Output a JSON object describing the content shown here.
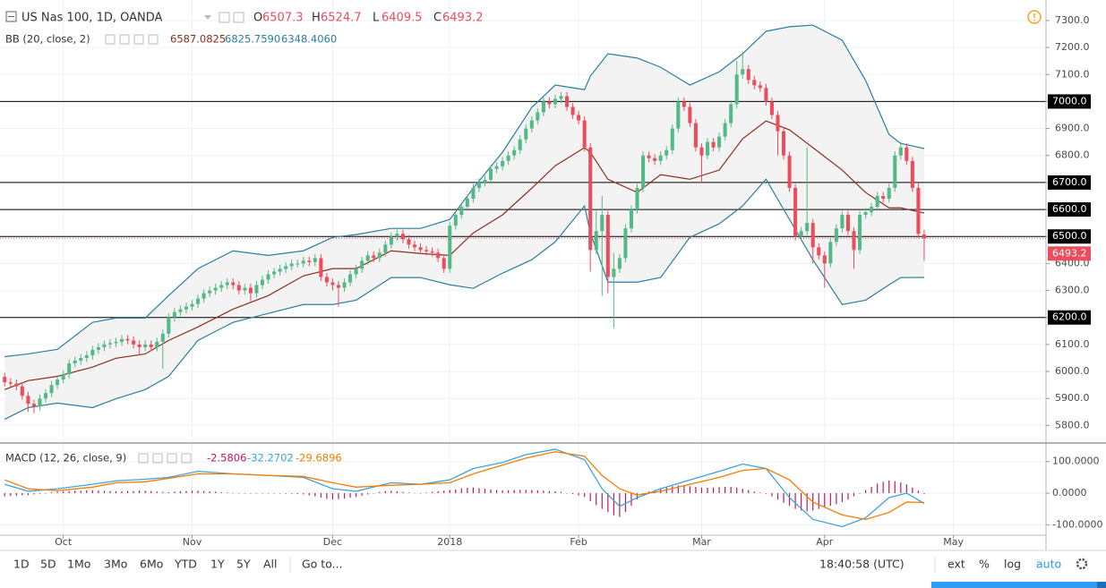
{
  "header": {
    "symbol": "US Nas 100, 1D, OANDA",
    "ohlc_letters": [
      "O",
      "H",
      "L",
      "C"
    ]
  },
  "chart_data": [
    {
      "type": "candlestick",
      "open": [
        5980,
        5960,
        5955,
        5945,
        5910,
        5880,
        5870,
        5900,
        5920,
        5950,
        5970,
        5990,
        6030,
        6040,
        6050,
        6060,
        6080,
        6090,
        6100,
        6105,
        6110,
        6120,
        6115,
        6100,
        6090,
        6100,
        6090,
        6110,
        6140,
        6200,
        6220,
        6230,
        6240,
        6250,
        6270,
        6290,
        6300,
        6310,
        6320,
        6330,
        6320,
        6300,
        6310,
        6290,
        6320,
        6340,
        6360,
        6370,
        6380,
        6390,
        6400,
        6400,
        6410,
        6405,
        6420,
        6350,
        6330,
        6320,
        6310,
        6330,
        6360,
        6380,
        6410,
        6430,
        6420,
        6440,
        6470,
        6500,
        6510,
        6490,
        6470,
        6460,
        6450,
        6445,
        6440,
        6420,
        6380,
        6540,
        6580,
        6610,
        6640,
        6680,
        6700,
        6710,
        6750,
        6760,
        6780,
        6800,
        6820,
        6860,
        6900,
        6930,
        6960,
        7000,
        6990,
        7010,
        7020,
        6980,
        6950,
        6930,
        6830,
        6450,
        6520,
        6580,
        6350,
        6380,
        6420,
        6530,
        6600,
        6680,
        6800,
        6790,
        6780,
        6800,
        6820,
        6900,
        7000,
        6980,
        6920,
        6830,
        6800,
        6850,
        6830,
        6870,
        6920,
        6990,
        7100,
        7120,
        7080,
        7060,
        7050,
        7000,
        6950,
        6890,
        6800,
        6680,
        6500,
        6520,
        6550,
        6460,
        6430,
        6400,
        6480,
        6530,
        6580,
        6520,
        6450,
        6580,
        6590,
        6610,
        6650,
        6640,
        6680,
        6800,
        6830,
        6780,
        6680,
        6507.3
      ],
      "high": [
        5995,
        5975,
        5970,
        5960,
        5925,
        5895,
        5915,
        5935,
        5965,
        5985,
        6005,
        6045,
        6055,
        6065,
        6075,
        6095,
        6105,
        6115,
        6120,
        6125,
        6135,
        6135,
        6130,
        6115,
        6115,
        6115,
        6125,
        6155,
        6215,
        6235,
        6245,
        6255,
        6265,
        6285,
        6305,
        6315,
        6325,
        6335,
        6345,
        6345,
        6335,
        6325,
        6325,
        6335,
        6355,
        6375,
        6385,
        6395,
        6405,
        6415,
        6415,
        6425,
        6425,
        6435,
        6435,
        6365,
        6345,
        6335,
        6345,
        6375,
        6395,
        6425,
        6445,
        6445,
        6455,
        6485,
        6515,
        6525,
        6525,
        6505,
        6485,
        6475,
        6465,
        6460,
        6455,
        6435,
        6555,
        6595,
        6625,
        6655,
        6695,
        6715,
        6725,
        6765,
        6775,
        6795,
        6815,
        6835,
        6875,
        6915,
        6945,
        6975,
        7015,
        7015,
        7025,
        7035,
        7035,
        6995,
        6965,
        6945,
        6845,
        6600,
        6650,
        6595,
        6440,
        6435,
        6545,
        6615,
        6695,
        6815,
        6815,
        6805,
        6815,
        6835,
        6915,
        7015,
        7015,
        6995,
        6935,
        6845,
        6865,
        6865,
        6885,
        6935,
        7005,
        7150,
        7185,
        7135,
        7095,
        7075,
        7065,
        7015,
        6965,
        6905,
        6815,
        6695,
        6535,
        6830,
        6565,
        6475,
        6445,
        6495,
        6545,
        6595,
        6595,
        6535,
        6595,
        6605,
        6625,
        6665,
        6665,
        6695,
        6815,
        6850,
        6845,
        6795,
        6700,
        6524.7
      ],
      "low": [
        5945,
        5940,
        5930,
        5895,
        5850,
        5845,
        5855,
        5885,
        5905,
        5935,
        5955,
        5975,
        6015,
        6025,
        6035,
        6045,
        6065,
        6075,
        6085,
        6090,
        6095,
        6100,
        6085,
        6060,
        6075,
        6075,
        6075,
        6010,
        6125,
        6185,
        6205,
        6215,
        6225,
        6235,
        6255,
        6275,
        6285,
        6295,
        6305,
        6305,
        6285,
        6285,
        6260,
        6275,
        6305,
        6325,
        6345,
        6355,
        6365,
        6375,
        6385,
        6385,
        6390,
        6390,
        6335,
        6315,
        6300,
        6240,
        6295,
        6315,
        6345,
        6365,
        6395,
        6405,
        6405,
        6425,
        6455,
        6485,
        6475,
        6455,
        6445,
        6435,
        6430,
        6425,
        6405,
        6365,
        6365,
        6525,
        6565,
        6595,
        6625,
        6665,
        6685,
        6695,
        6735,
        6745,
        6765,
        6785,
        6805,
        6845,
        6885,
        6915,
        6945,
        6975,
        6975,
        6995,
        6965,
        6935,
        6915,
        6815,
        6370,
        6435,
        6280,
        6290,
        6160,
        6365,
        6405,
        6515,
        6585,
        6665,
        6775,
        6765,
        6765,
        6785,
        6805,
        6885,
        6965,
        6905,
        6815,
        6700,
        6785,
        6815,
        6815,
        6855,
        6905,
        6975,
        7085,
        7065,
        7045,
        7035,
        6985,
        6935,
        6800,
        6785,
        6665,
        6485,
        6485,
        6505,
        6400,
        6415,
        6310,
        6385,
        6465,
        6515,
        6505,
        6380,
        6435,
        6565,
        6575,
        6595,
        6625,
        6625,
        6665,
        6785,
        6765,
        6665,
        6495,
        6409.5
      ],
      "close": [
        5960,
        5955,
        5945,
        5910,
        5880,
        5870,
        5900,
        5920,
        5950,
        5970,
        5990,
        6030,
        6040,
        6050,
        6060,
        6080,
        6090,
        6100,
        6105,
        6110,
        6120,
        6115,
        6100,
        6090,
        6100,
        6090,
        6110,
        6140,
        6200,
        6220,
        6230,
        6240,
        6250,
        6270,
        6290,
        6300,
        6310,
        6320,
        6330,
        6320,
        6300,
        6310,
        6290,
        6320,
        6340,
        6360,
        6370,
        6380,
        6390,
        6400,
        6400,
        6410,
        6405,
        6420,
        6350,
        6330,
        6320,
        6310,
        6330,
        6360,
        6380,
        6410,
        6430,
        6420,
        6440,
        6470,
        6500,
        6510,
        6490,
        6470,
        6460,
        6450,
        6445,
        6440,
        6420,
        6380,
        6540,
        6580,
        6610,
        6640,
        6680,
        6700,
        6710,
        6750,
        6760,
        6780,
        6800,
        6820,
        6860,
        6900,
        6930,
        6960,
        7000,
        6990,
        7010,
        7020,
        6980,
        6950,
        6930,
        6830,
        6450,
        6520,
        6580,
        6350,
        6380,
        6420,
        6530,
        6600,
        6680,
        6800,
        6790,
        6780,
        6800,
        6820,
        6900,
        7000,
        6980,
        6920,
        6830,
        6800,
        6850,
        6830,
        6870,
        6920,
        6990,
        7100,
        7120,
        7080,
        7060,
        7050,
        7000,
        6950,
        6890,
        6800,
        6680,
        6500,
        6520,
        6550,
        6460,
        6430,
        6400,
        6480,
        6530,
        6580,
        6520,
        6450,
        6580,
        6590,
        6610,
        6650,
        6640,
        6680,
        6800,
        6830,
        6780,
        6680,
        6510,
        6493.2
      ],
      "up_color": "#53b987",
      "down_color": "#eb4d5c",
      "xlim": [
        -0.8,
        177.8
      ],
      "xticks": [
        {
          "value": 10,
          "label": "Oct"
        },
        {
          "value": 32,
          "label": "Nov"
        },
        {
          "value": 56,
          "label": "Dec"
        },
        {
          "value": 76,
          "label": "2018"
        },
        {
          "value": 98,
          "label": "Feb"
        },
        {
          "value": 119,
          "label": "Mar"
        },
        {
          "value": 140,
          "label": "Apr"
        },
        {
          "value": 162,
          "label": "May"
        }
      ],
      "ylim": [
        5735,
        7376
      ],
      "yticks": [
        {
          "value": 7300,
          "label": "7300.0"
        },
        {
          "value": 7200,
          "label": "7200.0"
        },
        {
          "value": 7100,
          "label": "7100.0"
        },
        {
          "value": 7000,
          "label": "7000.0"
        },
        {
          "value": 6900,
          "label": "6900.0"
        },
        {
          "value": 6800,
          "label": "6800.0"
        },
        {
          "value": 6700,
          "label": "6700.0"
        },
        {
          "value": 6600,
          "label": "6600.0"
        },
        {
          "value": 6500,
          "label": "6500.0"
        },
        {
          "value": 6400,
          "label": "6400.0"
        },
        {
          "value": 6300,
          "label": "6300.0"
        },
        {
          "value": 6200,
          "label": "6200.0"
        },
        {
          "value": 6100,
          "label": "6100.0"
        },
        {
          "value": 6000,
          "label": "6000.0"
        },
        {
          "value": 5900,
          "label": "5900.0"
        },
        {
          "value": 5800,
          "label": "5800.0"
        }
      ],
      "grid": true,
      "hlines": [
        {
          "value": 7000,
          "label": "7000.0"
        },
        {
          "value": 6700,
          "label": "6700.0"
        },
        {
          "value": 6600,
          "label": "6600.0"
        },
        {
          "value": 6500,
          "label": "6500.0"
        },
        {
          "value": 6200,
          "label": "6200.0"
        }
      ],
      "bollinger": {
        "label": "BB (20, close, 2)",
        "fill": "#f3f3f3",
        "x": [
          0,
          4,
          9,
          15,
          19,
          24,
          28,
          33,
          39,
          45,
          51,
          56,
          60,
          66,
          71,
          76,
          80,
          85,
          90,
          94,
          99,
          100,
          103,
          108,
          112,
          117,
          122,
          126,
          130,
          134,
          138,
          143,
          147,
          151,
          153,
          157
        ],
        "series": [
          {
            "color": "#8b2e1e",
            "legend_label": "6587.0825",
            "values": [
              5933,
              5966,
              5982,
              6016,
              6049,
              6065,
              6115,
              6165,
              6231,
              6281,
              6354,
              6381,
              6381,
              6447,
              6437,
              6430,
              6513,
              6580,
              6679,
              6762,
              6829,
              6812,
              6712,
              6663,
              6729,
              6712,
              6746,
              6862,
              6928,
              6895,
              6829,
              6746,
              6663,
              6606,
              6606,
              6587.0825
            ]
          },
          {
            "color": "#2a7f9e",
            "legend_label": "6825.7590",
            "values": [
              6055,
              6065,
              6082,
              6182,
              6198,
              6198,
              6281,
              6381,
              6447,
              6430,
              6447,
              6497,
              6507,
              6530,
              6530,
              6563,
              6679,
              6812,
              6978,
              7061,
              7044,
              7094,
              7177,
              7161,
              7127,
              7061,
              7110,
              7177,
              7260,
              7277,
              7283,
              7227,
              7078,
              6878,
              6845,
              6825.759
            ]
          },
          {
            "color": "#2a7f9e",
            "legend_label": "6348.4060",
            "values": [
              5823,
              5866,
              5883,
              5866,
              5899,
              5933,
              5982,
              6115,
              6182,
              6215,
              6248,
              6248,
              6264,
              6348,
              6348,
              6321,
              6308,
              6364,
              6414,
              6480,
              6613,
              6513,
              6331,
              6331,
              6348,
              6497,
              6547,
              6613,
              6712,
              6563,
              6414,
              6248,
              6264,
              6321,
              6348,
              6348.406
            ]
          }
        ]
      }
    },
    {
      "type": "macd",
      "label": "MACD (12, 26, close, 9)",
      "ylim": [
        -133,
        153
      ],
      "yticks": [
        {
          "value": 100,
          "label": "100.0000"
        },
        {
          "value": 0,
          "label": "0.0000"
        },
        {
          "value": -100,
          "label": "-100.0000"
        }
      ],
      "histogram": {
        "color": "#c2185b",
        "values": [
          -10,
          -9,
          -8,
          -7,
          -6,
          -4,
          -2,
          0,
          3,
          5,
          6,
          7,
          8,
          8,
          9,
          9,
          8,
          7,
          7,
          6,
          6,
          7,
          7,
          8,
          8,
          7,
          5,
          4,
          3,
          5,
          6,
          7,
          8,
          8,
          7,
          6,
          5,
          3,
          2,
          1,
          0,
          0,
          0,
          0,
          0,
          0,
          -1,
          -1,
          -2,
          -2,
          -3,
          -4,
          -7,
          -10,
          -14,
          -18,
          -20,
          -19,
          -17,
          -14,
          -12,
          -8,
          -4,
          0,
          4,
          7,
          8,
          6,
          4,
          2,
          1,
          0,
          2,
          4,
          6,
          8,
          10,
          12,
          15,
          17,
          18,
          16,
          14,
          12,
          10,
          9,
          9,
          10,
          11,
          11,
          10,
          9,
          8,
          7,
          6,
          4,
          0,
          -3,
          -7,
          -12,
          -25,
          -38,
          -50,
          -60,
          -70,
          -75,
          -60,
          -40,
          -20,
          -5,
          5,
          10,
          15,
          18,
          22,
          25,
          24,
          22,
          20,
          18,
          17,
          18,
          19,
          20,
          20,
          18,
          14,
          10,
          5,
          2,
          -2,
          -10,
          -20,
          -30,
          -40,
          -50,
          -55,
          -58,
          -55,
          -50,
          -45,
          -40,
          -35,
          -28,
          -20,
          -10,
          0,
          10,
          20,
          30,
          36,
          40,
          38,
          34,
          28,
          18,
          8,
          -2.5806
        ]
      },
      "x": [
        0,
        4,
        9,
        15,
        19,
        24,
        28,
        33,
        39,
        45,
        51,
        56,
        60,
        66,
        71,
        76,
        80,
        85,
        89,
        94,
        99,
        102,
        105,
        108,
        112,
        117,
        122,
        126,
        130,
        134,
        138,
        143,
        147,
        151,
        154,
        157
      ],
      "series": [
        {
          "color": "#3ca3dc",
          "values": [
            28,
            6,
            14,
            28,
            39,
            44,
            50,
            69,
            61,
            56,
            50,
            14,
            6,
            33,
            28,
            42,
            78,
            97,
            122,
            139,
            106,
            14,
            -42,
            -14,
            14,
            42,
            69,
            92,
            78,
            -14,
            -83,
            -106,
            -78,
            -14,
            0,
            -32.2702
          ]
        },
        {
          "color": "#f57c00",
          "values": [
            42,
            14,
            8,
            19,
            33,
            36,
            47,
            61,
            61,
            56,
            53,
            33,
            19,
            25,
            28,
            33,
            61,
            89,
            111,
            131,
            117,
            56,
            14,
            -6,
            6,
            28,
            50,
            72,
            78,
            42,
            -28,
            -69,
            -83,
            -61,
            -28,
            -29.6896
          ]
        }
      ]
    }
  ],
  "toolbar": {
    "ranges": [
      "1D",
      "5D",
      "1Mo",
      "3Mo",
      "6Mo",
      "YTD",
      "1Y",
      "5Y",
      "All"
    ],
    "goto": "Go to...",
    "time": "18:40:58 (UTC)",
    "options": [
      "ext",
      "%",
      "log",
      "auto"
    ]
  }
}
